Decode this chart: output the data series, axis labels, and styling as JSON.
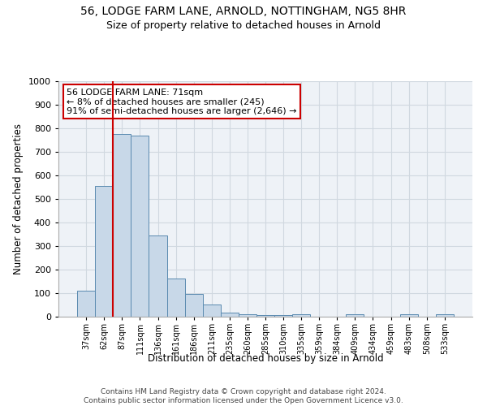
{
  "title": "56, LODGE FARM LANE, ARNOLD, NOTTINGHAM, NG5 8HR",
  "subtitle": "Size of property relative to detached houses in Arnold",
  "xlabel": "Distribution of detached houses by size in Arnold",
  "ylabel": "Number of detached properties",
  "categories": [
    "37sqm",
    "62sqm",
    "87sqm",
    "111sqm",
    "136sqm",
    "161sqm",
    "186sqm",
    "211sqm",
    "235sqm",
    "260sqm",
    "285sqm",
    "310sqm",
    "335sqm",
    "359sqm",
    "384sqm",
    "409sqm",
    "434sqm",
    "459sqm",
    "483sqm",
    "508sqm",
    "533sqm"
  ],
  "values": [
    110,
    555,
    775,
    770,
    345,
    163,
    96,
    53,
    18,
    10,
    8,
    8,
    9,
    0,
    0,
    10,
    0,
    0,
    10,
    0,
    10
  ],
  "bar_color": "#c8d8e8",
  "bar_edge_color": "#5a8ab0",
  "annotation_text": "56 LODGE FARM LANE: 71sqm\n← 8% of detached houses are smaller (245)\n91% of semi-detached houses are larger (2,646) →",
  "annotation_box_color": "#ffffff",
  "annotation_box_edge_color": "#cc0000",
  "red_line_color": "#cc0000",
  "footer_line1": "Contains HM Land Registry data © Crown copyright and database right 2024.",
  "footer_line2": "Contains public sector information licensed under the Open Government Licence v3.0.",
  "ylim": [
    0,
    1000
  ],
  "yticks": [
    0,
    100,
    200,
    300,
    400,
    500,
    600,
    700,
    800,
    900,
    1000
  ],
  "grid_color": "#d0d8e0",
  "background_color": "#eef2f7",
  "fig_width": 6.0,
  "fig_height": 5.0,
  "dpi": 100
}
